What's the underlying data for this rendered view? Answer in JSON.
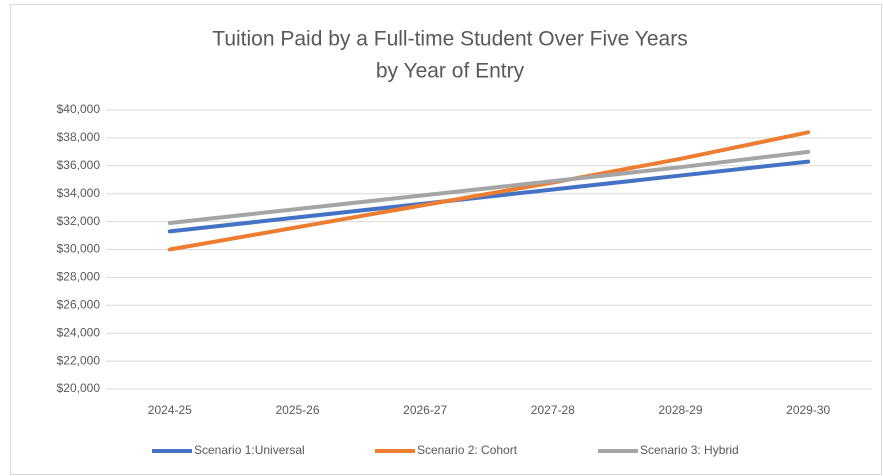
{
  "chart_data": {
    "type": "line",
    "title": [
      "Tuition Paid by a Full-time Student Over Five Years",
      "by Year of Entry"
    ],
    "categories": [
      "2024-25",
      "2025-26",
      "2026-27",
      "2027-28",
      "2028-29",
      "2029-30"
    ],
    "series": [
      {
        "name": "Scenario 1:Universal",
        "color": "#4472c4",
        "values": [
          31300,
          32300,
          33300,
          34300,
          35300,
          36300
        ]
      },
      {
        "name": "Scenario 2: Cohort",
        "color": "#ed7d31",
        "values": [
          30000,
          31600,
          33200,
          34800,
          36500,
          38400
        ]
      },
      {
        "name": "Scenario 3: Hybrid",
        "color": "#a5a5a5",
        "values": [
          31900,
          32900,
          33900,
          34900,
          35900,
          37000
        ]
      }
    ],
    "ylim": [
      20000,
      40000
    ],
    "yticks": [
      {
        "value": 20000,
        "label": "$20,000"
      },
      {
        "value": 22000,
        "label": "$22,000"
      },
      {
        "value": 24000,
        "label": "$24,000"
      },
      {
        "value": 26000,
        "label": "$26,000"
      },
      {
        "value": 28000,
        "label": "$28,000"
      },
      {
        "value": 30000,
        "label": "$30,000"
      },
      {
        "value": 32000,
        "label": "$32,000"
      },
      {
        "value": 34000,
        "label": "$34,000"
      },
      {
        "value": 36000,
        "label": "$36,000"
      },
      {
        "value": 38000,
        "label": "$38,000"
      },
      {
        "value": 40000,
        "label": "$40,000"
      }
    ],
    "grid": true,
    "legend": "bottom"
  }
}
